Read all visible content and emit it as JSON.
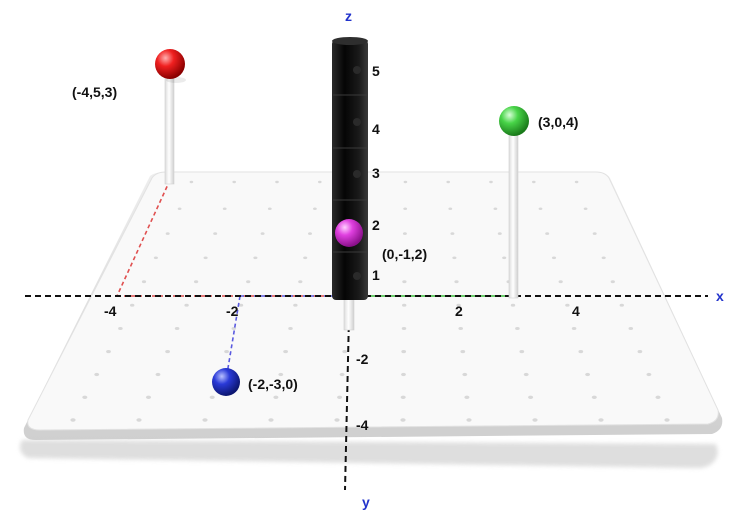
{
  "axes": {
    "x_label": "x",
    "y_label": "y",
    "z_label": "z",
    "x_ticks": [
      "-4",
      "-2",
      "2",
      "4"
    ],
    "y_ticks": [
      "-2",
      "-4"
    ],
    "z_ticks": [
      "1",
      "2",
      "3",
      "4",
      "5"
    ]
  },
  "points": [
    {
      "label": "(-4,5,3)",
      "color": "#e61c1c",
      "guide_color": "#e05050"
    },
    {
      "label": "(3,0,4)",
      "color": "#3ec93e",
      "guide_color": "#3fbf3f"
    },
    {
      "label": "(0,-1,2)",
      "color": "#e04be0",
      "guide_color": "#bbbbbb"
    },
    {
      "label": "(-2,-3,0)",
      "color": "#2b3ed6",
      "guide_color": "#5a5ae0"
    }
  ],
  "colors": {
    "axis": "#111111",
    "board": "#f7f7f7",
    "board_edge": "#e6e6e6",
    "peg_hole": "#d8d8d8",
    "tower": "#0c0c0c",
    "axis_label_blue": "#2233cc"
  }
}
